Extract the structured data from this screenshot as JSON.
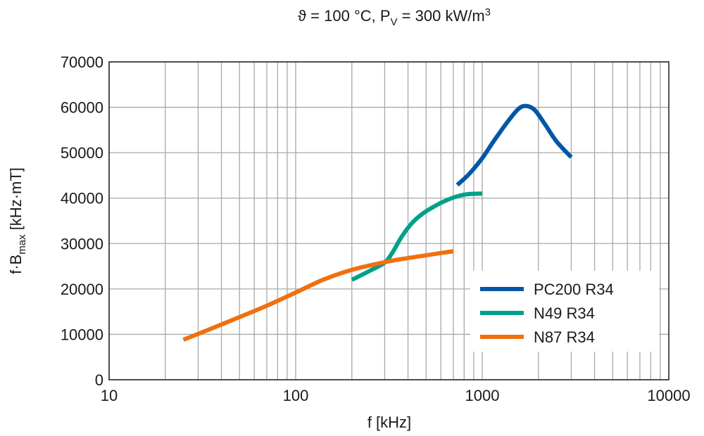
{
  "chart_data": {
    "type": "line",
    "title": "ϑ = 100 °C, P",
    "title_sub": "V",
    "title_rest": " = 300 kW/m",
    "title_sup": "3",
    "xlabel": "f [kHz]",
    "ylabel_main": "f·B",
    "ylabel_sub": "max",
    "ylabel_rest": " [kHz·mT]",
    "x_scale": "log",
    "xlim": [
      10,
      10000
    ],
    "ylim": [
      0,
      70000
    ],
    "x_ticks": [
      "10",
      "100",
      "1000",
      "10000"
    ],
    "y_ticks": [
      "0",
      "10000",
      "20000",
      "30000",
      "40000",
      "50000",
      "60000",
      "70000"
    ],
    "grid": true,
    "legend_placement": "bottom-right",
    "series": [
      {
        "name": "PC200 R34",
        "color": "#0057a8",
        "x": [
          735,
          850,
          1000,
          1150,
          1350,
          1550,
          1700,
          1900,
          2150,
          2500,
          3000
        ],
        "y": [
          42900,
          45300,
          48800,
          52500,
          56500,
          59500,
          60300,
          59500,
          56500,
          52500,
          49000
        ]
      },
      {
        "name": "N49 R34",
        "color": "#00a08a",
        "x": [
          200,
          250,
          300,
          330,
          370,
          420,
          480,
          560,
          650,
          750,
          850,
          1000
        ],
        "y": [
          22000,
          24000,
          25800,
          28000,
          31500,
          34500,
          36600,
          38300,
          39600,
          40500,
          40900,
          41000
        ]
      },
      {
        "name": "N87 R34",
        "color": "#f07010",
        "x": [
          25,
          35,
          50,
          70,
          100,
          140,
          200,
          300,
          400,
          500,
          600,
          700
        ],
        "y": [
          8800,
          11200,
          13800,
          16300,
          19200,
          22000,
          24200,
          25900,
          26800,
          27400,
          27900,
          28300
        ]
      }
    ]
  }
}
